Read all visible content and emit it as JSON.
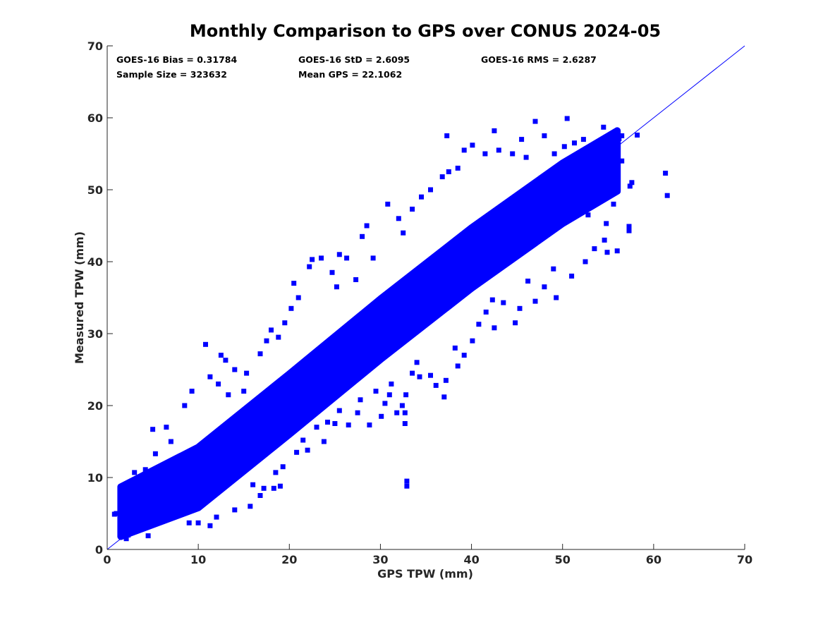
{
  "chart_data": {
    "type": "scatter",
    "title": "Monthly Comparison to GPS over CONUS 2024-05",
    "xlabel": "GPS TPW (mm)",
    "ylabel": "Measured TPW (mm)",
    "xlim": [
      0,
      70
    ],
    "ylim": [
      0,
      70
    ],
    "xticks": [
      "0",
      "10",
      "20",
      "30",
      "40",
      "50",
      "60",
      "70"
    ],
    "yticks": [
      "0",
      "10",
      "20",
      "30",
      "40",
      "50",
      "60",
      "70"
    ],
    "grid": false,
    "marker_color": "#0000ff",
    "reference_line": {
      "from": [
        0,
        0
      ],
      "to": [
        70,
        70
      ],
      "color": "#0000ff"
    },
    "stats": [
      "GOES-16 Bias = 0.31784",
      "GOES-16 StD = 2.6095",
      "GOES-16 RMS = 2.6287",
      "Sample Size = 323632",
      "Mean GPS = 22.1062"
    ],
    "dense_cloud_band": {
      "center_line": [
        [
          1.5,
          4.5
        ],
        [
          10,
          10
        ],
        [
          20,
          20.2
        ],
        [
          30,
          30.6
        ],
        [
          40,
          40.5
        ],
        [
          50,
          49.5
        ],
        [
          56,
          54
        ]
      ],
      "half_width_y": 4.2,
      "y_floor": 1.8
    },
    "points": [
      [
        61.3,
        52.3
      ],
      [
        61.5,
        49.2
      ],
      [
        54.9,
        52.6
      ],
      [
        57.3,
        44.3
      ],
      [
        57.3,
        44.9
      ],
      [
        57.4,
        50.5
      ],
      [
        57.6,
        51.0
      ],
      [
        55.2,
        54.6
      ],
      [
        56.5,
        54.0
      ],
      [
        58.2,
        57.6
      ],
      [
        56.5,
        57.5
      ],
      [
        56.2,
        57.1
      ],
      [
        55.8,
        56.5
      ],
      [
        54.5,
        58.7
      ],
      [
        55.0,
        56.8
      ],
      [
        50.5,
        59.9
      ],
      [
        47.0,
        59.5
      ],
      [
        48.0,
        57.5
      ],
      [
        45.5,
        57.0
      ],
      [
        42.5,
        58.2
      ],
      [
        40.1,
        56.2
      ],
      [
        37.3,
        57.5
      ],
      [
        50.2,
        56.0
      ],
      [
        52.3,
        57.0
      ],
      [
        53.9,
        54.0
      ],
      [
        55.4,
        51.0
      ],
      [
        55.6,
        48.0
      ],
      [
        54.8,
        45.3
      ],
      [
        54.6,
        43.0
      ],
      [
        53.5,
        41.8
      ],
      [
        54.9,
        41.3
      ],
      [
        56.0,
        41.5
      ],
      [
        52.5,
        40.0
      ],
      [
        49.0,
        39.0
      ],
      [
        46.2,
        37.3
      ],
      [
        49.3,
        35.0
      ],
      [
        47.0,
        34.5
      ],
      [
        45.3,
        33.5
      ],
      [
        43.5,
        34.3
      ],
      [
        42.3,
        34.7
      ],
      [
        41.6,
        33.0
      ],
      [
        40.8,
        31.3
      ],
      [
        40.1,
        29.0
      ],
      [
        39.2,
        27.0
      ],
      [
        38.5,
        25.5
      ],
      [
        37.2,
        23.5
      ],
      [
        37.0,
        21.2
      ],
      [
        34.3,
        24.0
      ],
      [
        33.5,
        24.5
      ],
      [
        32.8,
        21.5
      ],
      [
        32.4,
        20.0
      ],
      [
        31.8,
        19.0
      ],
      [
        32.7,
        19.0
      ],
      [
        32.7,
        17.5
      ],
      [
        30.1,
        18.5
      ],
      [
        28.8,
        17.3
      ],
      [
        27.5,
        19.0
      ],
      [
        25.5,
        19.3
      ],
      [
        24.2,
        17.7
      ],
      [
        23.0,
        17.0
      ],
      [
        21.5,
        15.2
      ],
      [
        20.8,
        13.5
      ],
      [
        19.3,
        11.5
      ],
      [
        18.5,
        10.7
      ],
      [
        17.2,
        8.5
      ],
      [
        16.0,
        9.0
      ],
      [
        32.9,
        9.5
      ],
      [
        32.9,
        8.8
      ],
      [
        31.2,
        23.0
      ],
      [
        29.5,
        27.5
      ],
      [
        10.8,
        28.5
      ],
      [
        12.5,
        27.0
      ],
      [
        13.0,
        26.3
      ],
      [
        14.0,
        25.0
      ],
      [
        15.3,
        24.5
      ],
      [
        16.8,
        27.2
      ],
      [
        17.5,
        29.0
      ],
      [
        18.0,
        30.5
      ],
      [
        20.2,
        33.5
      ],
      [
        21.0,
        35.0
      ],
      [
        20.5,
        37.0
      ],
      [
        22.2,
        39.3
      ],
      [
        22.5,
        40.3
      ],
      [
        23.5,
        40.5
      ],
      [
        25.5,
        41.0
      ],
      [
        24.7,
        38.5
      ],
      [
        26.3,
        40.5
      ],
      [
        28.0,
        43.5
      ],
      [
        28.5,
        45.0
      ],
      [
        30.8,
        48.0
      ],
      [
        32.0,
        46.0
      ],
      [
        32.5,
        44.0
      ],
      [
        33.5,
        47.3
      ],
      [
        34.5,
        49.0
      ],
      [
        35.5,
        50.0
      ],
      [
        36.8,
        51.8
      ],
      [
        37.5,
        52.5
      ],
      [
        38.5,
        53.0
      ],
      [
        39.2,
        55.5
      ],
      [
        41.5,
        55.0
      ],
      [
        43.0,
        55.5
      ],
      [
        44.5,
        55.0
      ],
      [
        46.0,
        54.5
      ],
      [
        49.1,
        55.0
      ],
      [
        51.3,
        56.5
      ],
      [
        8.5,
        20.0
      ],
      [
        9.3,
        22.0
      ],
      [
        11.3,
        24.0
      ],
      [
        12.2,
        23.0
      ],
      [
        6.5,
        17.0
      ],
      [
        7.0,
        15.0
      ],
      [
        5.3,
        13.3
      ],
      [
        5.0,
        16.7
      ],
      [
        2.1,
        1.5
      ],
      [
        2.3,
        2.0
      ],
      [
        4.5,
        1.9
      ],
      [
        9.0,
        3.7
      ],
      [
        10.0,
        3.7
      ],
      [
        11.3,
        3.3
      ],
      [
        12.0,
        4.5
      ],
      [
        14.0,
        5.5
      ],
      [
        15.7,
        6.0
      ],
      [
        16.8,
        7.5
      ],
      [
        18.3,
        8.5
      ],
      [
        19.0,
        8.8
      ],
      [
        1.0,
        5.0
      ],
      [
        1.5,
        3.3
      ],
      [
        0.8,
        4.9
      ],
      [
        3.0,
        10.7
      ],
      [
        4.2,
        11.1
      ],
      [
        26.5,
        17.3
      ],
      [
        27.8,
        20.8
      ],
      [
        29.5,
        22.0
      ],
      [
        34.0,
        26.0
      ],
      [
        35.5,
        24.2
      ],
      [
        36.1,
        22.8
      ],
      [
        38.2,
        28.0
      ],
      [
        42.5,
        30.8
      ],
      [
        44.8,
        31.5
      ],
      [
        48.0,
        36.5
      ],
      [
        51.0,
        38.0
      ],
      [
        52.8,
        46.5
      ],
      [
        53.0,
        48.5
      ],
      [
        22.0,
        13.8
      ],
      [
        23.8,
        15.0
      ],
      [
        25.0,
        17.5
      ],
      [
        30.5,
        20.3
      ],
      [
        31.0,
        21.5
      ],
      [
        13.3,
        21.5
      ],
      [
        15.0,
        22.0
      ],
      [
        18.8,
        29.5
      ],
      [
        19.5,
        31.5
      ],
      [
        25.2,
        36.5
      ],
      [
        27.3,
        37.5
      ],
      [
        29.2,
        40.5
      ]
    ]
  }
}
